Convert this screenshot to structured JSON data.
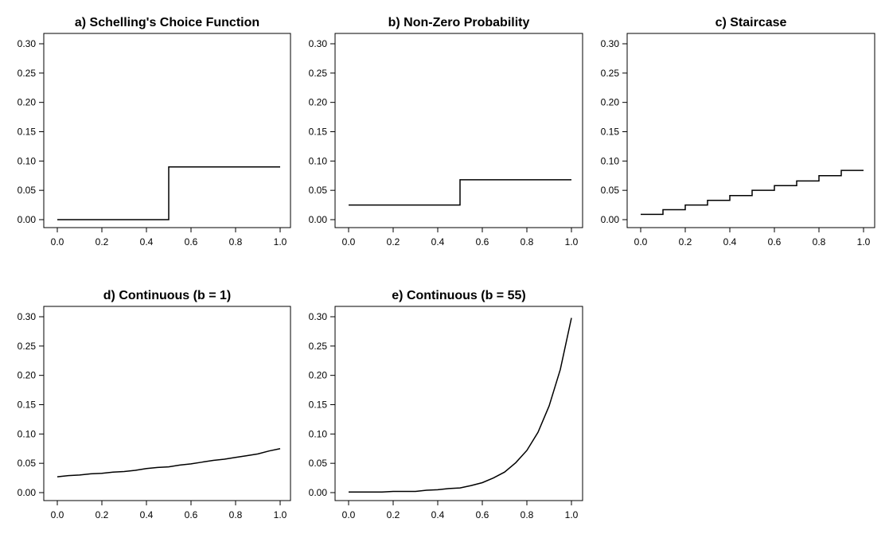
{
  "chart_data": [
    {
      "type": "line",
      "step": "post",
      "title": "a) Schelling's Choice Function",
      "xlim": [
        0,
        1
      ],
      "ylim": [
        0,
        0.3
      ],
      "x_ticks": [
        "0.0",
        "0.2",
        "0.4",
        "0.6",
        "0.8",
        "1.0"
      ],
      "y_ticks": [
        "0.00",
        "0.05",
        "0.10",
        "0.15",
        "0.20",
        "0.25",
        "0.30"
      ],
      "series": [
        {
          "x": [
            0,
            0.5,
            1.0
          ],
          "y": [
            0,
            0.09,
            0.09
          ]
        }
      ]
    },
    {
      "type": "line",
      "step": "post",
      "title": "b) Non-Zero Probability",
      "xlim": [
        0,
        1
      ],
      "ylim": [
        0,
        0.3
      ],
      "x_ticks": [
        "0.0",
        "0.2",
        "0.4",
        "0.6",
        "0.8",
        "1.0"
      ],
      "y_ticks": [
        "0.00",
        "0.05",
        "0.10",
        "0.15",
        "0.20",
        "0.25",
        "0.30"
      ],
      "series": [
        {
          "x": [
            0,
            0.5,
            1.0
          ],
          "y": [
            0.025,
            0.068,
            0.068
          ]
        }
      ]
    },
    {
      "type": "line",
      "step": "post",
      "title": "c) Staircase",
      "xlim": [
        0,
        1
      ],
      "ylim": [
        0,
        0.3
      ],
      "x_ticks": [
        "0.0",
        "0.2",
        "0.4",
        "0.6",
        "0.8",
        "1.0"
      ],
      "y_ticks": [
        "0.00",
        "0.05",
        "0.10",
        "0.15",
        "0.20",
        "0.25",
        "0.30"
      ],
      "series": [
        {
          "x": [
            0,
            0.1,
            0.2,
            0.3,
            0.4,
            0.5,
            0.6,
            0.7,
            0.8,
            0.9,
            1.0
          ],
          "y": [
            0.009,
            0.017,
            0.025,
            0.033,
            0.041,
            0.05,
            0.058,
            0.066,
            0.075,
            0.084,
            0.084
          ]
        }
      ]
    },
    {
      "type": "line",
      "title": "d) Continuous (b = 1)",
      "xlim": [
        0,
        1
      ],
      "ylim": [
        0,
        0.3
      ],
      "x_ticks": [
        "0.0",
        "0.2",
        "0.4",
        "0.6",
        "0.8",
        "1.0"
      ],
      "y_ticks": [
        "0.00",
        "0.05",
        "0.10",
        "0.15",
        "0.20",
        "0.25",
        "0.30"
      ],
      "series": [
        {
          "x": [
            0,
            0.05,
            0.1,
            0.15,
            0.2,
            0.25,
            0.3,
            0.35,
            0.4,
            0.45,
            0.5,
            0.55,
            0.6,
            0.65,
            0.7,
            0.75,
            0.8,
            0.85,
            0.9,
            0.95,
            1.0
          ],
          "y": [
            0.027,
            0.029,
            0.03,
            0.032,
            0.033,
            0.035,
            0.036,
            0.038,
            0.041,
            0.043,
            0.044,
            0.047,
            0.049,
            0.052,
            0.055,
            0.057,
            0.06,
            0.063,
            0.066,
            0.071,
            0.075
          ]
        }
      ]
    },
    {
      "type": "line",
      "title": "e) Continuous (b = 55)",
      "xlim": [
        0,
        1
      ],
      "ylim": [
        0,
        0.3
      ],
      "x_ticks": [
        "0.0",
        "0.2",
        "0.4",
        "0.6",
        "0.8",
        "1.0"
      ],
      "y_ticks": [
        "0.00",
        "0.05",
        "0.10",
        "0.15",
        "0.20",
        "0.25",
        "0.30"
      ],
      "series": [
        {
          "x": [
            0,
            0.05,
            0.1,
            0.15,
            0.2,
            0.25,
            0.3,
            0.35,
            0.4,
            0.45,
            0.5,
            0.55,
            0.6,
            0.65,
            0.7,
            0.75,
            0.8,
            0.85,
            0.9,
            0.95,
            1.0
          ],
          "y": [
            0.001,
            0.001,
            0.001,
            0.001,
            0.002,
            0.002,
            0.002,
            0.004,
            0.005,
            0.007,
            0.008,
            0.012,
            0.017,
            0.025,
            0.035,
            0.051,
            0.072,
            0.103,
            0.148,
            0.21,
            0.298
          ]
        }
      ]
    }
  ]
}
